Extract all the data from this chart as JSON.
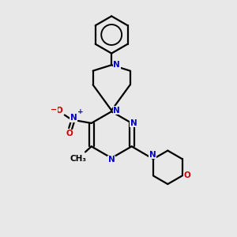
{
  "bg_color": "#e8e8e8",
  "bond_color": "#000000",
  "N_color": "#0000cc",
  "O_color": "#cc0000",
  "line_width": 1.6,
  "fig_size": [
    3.0,
    3.0
  ],
  "dpi": 100,
  "xlim": [
    0,
    10
  ],
  "ylim": [
    0,
    10
  ]
}
